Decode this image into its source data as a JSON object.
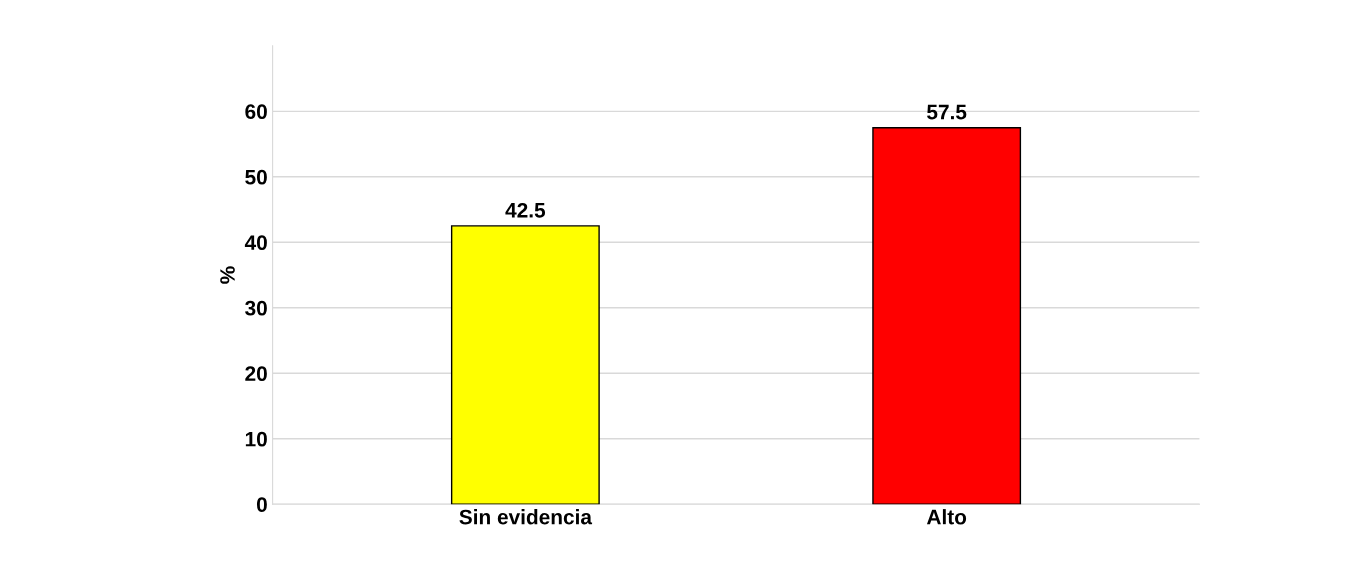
{
  "chart_data": {
    "type": "bar",
    "ylabel": "%",
    "categories": [
      "Sin evidencia",
      "Alto"
    ],
    "values": [
      42.5,
      57.5
    ],
    "colors": [
      "#ffff00",
      "#ff0000"
    ],
    "ylim": [
      0,
      70
    ],
    "yticks": [
      0,
      10,
      20,
      30,
      40,
      50,
      60
    ],
    "grid": "y",
    "data_labels": true
  }
}
